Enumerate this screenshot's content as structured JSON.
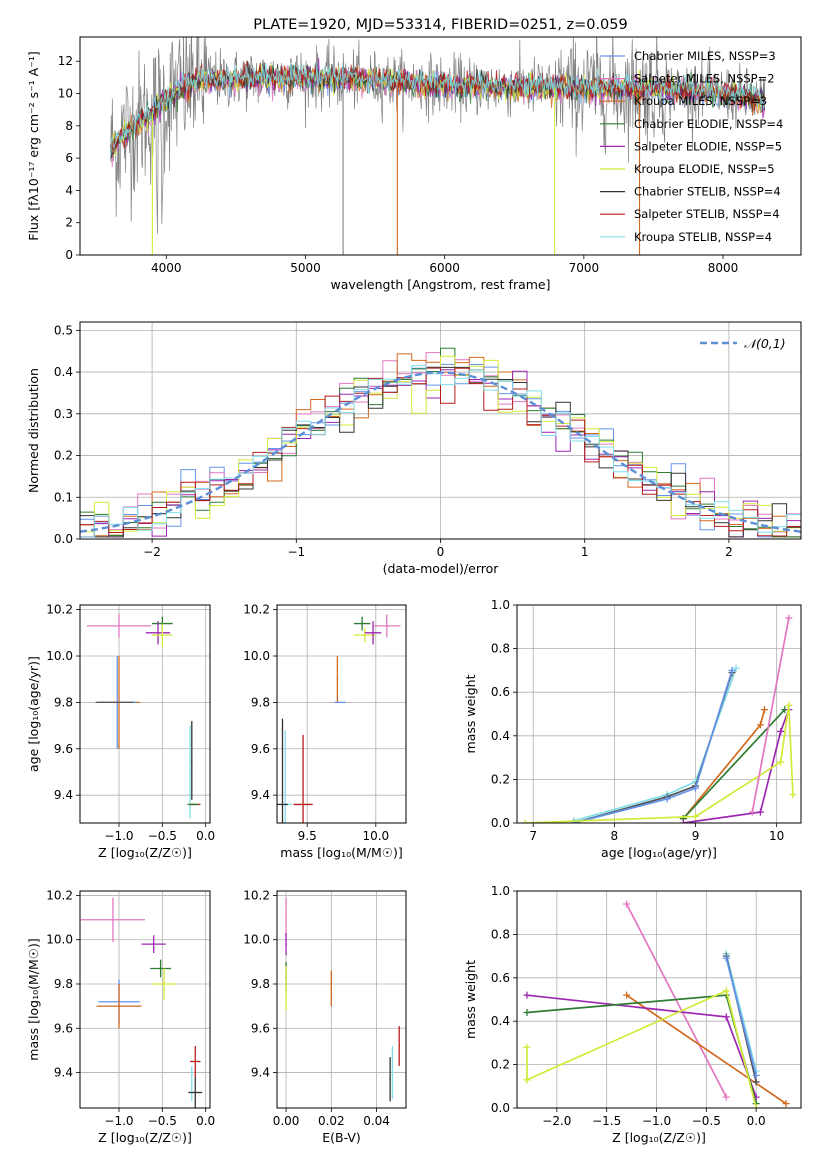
{
  "chart_data": [
    {
      "id": "spectrum",
      "type": "line",
      "title": "PLATE=1920, MJD=53314, FIBERID=0251, z=0.059",
      "xlabel": "wavelength [Angstrom, rest frame]",
      "ylabel": "Flux [fλ10⁻¹⁷ erg cm⁻² s⁻¹ A⁻¹]",
      "xlim": [
        3380,
        8560
      ],
      "ylim": [
        0,
        13.5
      ],
      "xticks": [
        4000,
        5000,
        6000,
        7000,
        8000
      ],
      "yticks": [
        0,
        2,
        4,
        6,
        8,
        10,
        12
      ],
      "grid": false,
      "legend_position": "right",
      "data_range": [
        3600,
        8300
      ],
      "series": [
        {
          "name": "Chabrier MILES, NSSP=3",
          "color": "#6495ed"
        },
        {
          "name": "Salpeter MILES, NSSP=2",
          "color": "#e377c2"
        },
        {
          "name": "Kroupa MILES, NSSP=3",
          "color": "#d2691e"
        },
        {
          "name": "Chabrier ELODIE, NSSP=4",
          "color": "#2e7d32"
        },
        {
          "name": "Salpeter ELODIE, NSSP=5",
          "color": "#9c27b0"
        },
        {
          "name": "Kroupa ELODIE, NSSP=5",
          "color": "#d4ea3a"
        },
        {
          "name": "Chabrier STELIB, NSSP=4",
          "color": "#333333"
        },
        {
          "name": "Salpeter STELIB, NSSP=4",
          "color": "#b71c1c"
        },
        {
          "name": "Kroupa STELIB, NSSP=4",
          "color": "#80deea"
        }
      ],
      "data_series": {
        "name": "data",
        "color": "#808080"
      },
      "continuum_points": [
        [
          3600,
          6.5
        ],
        [
          3700,
          7.5
        ],
        [
          3800,
          8.2
        ],
        [
          3900,
          8.8
        ],
        [
          4000,
          9.6
        ],
        [
          4200,
          10.8
        ],
        [
          4500,
          10.9
        ],
        [
          5000,
          11.0
        ],
        [
          5500,
          10.8
        ],
        [
          6000,
          10.5
        ],
        [
          6500,
          10.4
        ],
        [
          7000,
          10.3
        ],
        [
          7500,
          10.3
        ],
        [
          8000,
          10.0
        ],
        [
          8300,
          9.5
        ]
      ]
    },
    {
      "id": "residuals",
      "type": "line",
      "xlabel": "(data-model)/error",
      "ylabel": "Normed distribution",
      "xlim": [
        -2.5,
        2.5
      ],
      "ylim": [
        0,
        0.52
      ],
      "xticks": [
        -2,
        -1,
        0,
        1,
        2
      ],
      "yticks": [
        0.0,
        0.1,
        0.2,
        0.3,
        0.4,
        0.5
      ],
      "grid": true,
      "legend_position": "top-right",
      "gaussian": {
        "name": "𝒩(0,1)",
        "color": "#5b8fd6"
      },
      "bin_width": 0.1
    },
    {
      "id": "age-vs-Z",
      "type": "scatter",
      "xlabel": "Z [log₁₀(Z/Z☉)]",
      "ylabel": "age  [log₁₀(age/yr)]",
      "xlim": [
        -1.45,
        0.05
      ],
      "ylim": [
        9.28,
        10.22
      ],
      "xticks": [
        -1.0,
        -0.5,
        0.0
      ],
      "yticks": [
        9.4,
        9.6,
        9.8,
        10.0,
        10.2
      ],
      "grid": true,
      "points": [
        {
          "x": -1.0,
          "y": 9.8,
          "xerr": 0.24,
          "yerr": 0.2,
          "color": "#d2691e"
        },
        {
          "x": -1.02,
          "y": 9.8,
          "xerr": 0.22,
          "yerr": 0.2,
          "color": "#6495ed"
        },
        {
          "x": -1.05,
          "y": 9.8,
          "xerr": 0.22,
          "yerr": 0.0,
          "color": "#555555"
        },
        {
          "x": -1.0,
          "y": 10.13,
          "xerr": 0.37,
          "yerr": 0.05,
          "color": "#e377c2"
        },
        {
          "x": -0.5,
          "y": 10.14,
          "xerr": 0.12,
          "yerr": 0.03,
          "color": "#2e7d32"
        },
        {
          "x": -0.55,
          "y": 10.1,
          "xerr": 0.14,
          "yerr": 0.05,
          "color": "#9c27b0"
        },
        {
          "x": -0.5,
          "y": 10.09,
          "xerr": 0.12,
          "yerr": 0.05,
          "color": "#d4ea3a"
        },
        {
          "x": -0.18,
          "y": 9.5,
          "xerr": 0.0,
          "yerr": 0.2,
          "color": "#80deea"
        },
        {
          "x": -0.16,
          "y": 9.55,
          "xerr": 0.0,
          "yerr": 0.17,
          "color": "#333333"
        },
        {
          "x": -0.12,
          "y": 9.36,
          "xerr": 0.06,
          "yerr": 0.0,
          "color": "#b71c1c"
        },
        {
          "x": -0.15,
          "y": 9.36,
          "xerr": 0.06,
          "yerr": 0.0,
          "color": "#2e7d32"
        }
      ]
    },
    {
      "id": "age-vs-mass",
      "type": "scatter",
      "xlabel": "mass [log₁₀(M/M☉)]",
      "ylabel": "",
      "xlim": [
        9.28,
        10.22
      ],
      "ylim": [
        9.28,
        10.22
      ],
      "xticks": [
        9.5,
        10.0
      ],
      "yticks": [
        9.4,
        9.6,
        9.8,
        10.0,
        10.2
      ],
      "grid": true,
      "points": [
        {
          "x": 9.72,
          "y": 9.9,
          "xerr": 0.0,
          "yerr": 0.1,
          "color": "#d2691e"
        },
        {
          "x": 9.74,
          "y": 9.8,
          "xerr": 0.04,
          "yerr": 0.0,
          "color": "#6495ed"
        },
        {
          "x": 9.92,
          "y": 10.09,
          "xerr": 0.08,
          "yerr": 0.03,
          "color": "#d4ea3a"
        },
        {
          "x": 9.9,
          "y": 10.14,
          "xerr": 0.06,
          "yerr": 0.03,
          "color": "#2e7d32"
        },
        {
          "x": 9.98,
          "y": 10.1,
          "xerr": 0.06,
          "yerr": 0.05,
          "color": "#9c27b0"
        },
        {
          "x": 10.08,
          "y": 10.13,
          "xerr": 0.1,
          "yerr": 0.05,
          "color": "#e377c2"
        },
        {
          "x": 9.34,
          "y": 9.36,
          "xerr": 0.05,
          "yerr": 0.32,
          "color": "#80deea"
        },
        {
          "x": 9.32,
          "y": 9.36,
          "xerr": 0.04,
          "yerr": 0.37,
          "color": "#333333"
        },
        {
          "x": 9.47,
          "y": 9.36,
          "xerr": 0.07,
          "yerr": 0.3,
          "color": "#b71c1c"
        }
      ]
    },
    {
      "id": "mass-weight-vs-age",
      "type": "line",
      "xlabel": "age  [log₁₀(age/yr)]",
      "ylabel": "mass weight",
      "xlim": [
        6.8,
        10.3
      ],
      "ylim": [
        0,
        1.0
      ],
      "xticks": [
        7,
        8,
        9,
        10
      ],
      "yticks": [
        0.0,
        0.2,
        0.4,
        0.6,
        0.8,
        1.0
      ],
      "grid": true,
      "series": [
        {
          "color": "#80deea",
          "points": [
            [
              7.5,
              0.01
            ],
            [
              8.65,
              0.13
            ],
            [
              9.0,
              0.19
            ],
            [
              9.5,
              0.71
            ]
          ]
        },
        {
          "color": "#555555",
          "points": [
            [
              7.5,
              0.0
            ],
            [
              8.65,
              0.12
            ],
            [
              9.0,
              0.17
            ],
            [
              9.45,
              0.69
            ]
          ]
        },
        {
          "color": "#6495ed",
          "points": [
            [
              7.5,
              0.0
            ],
            [
              8.65,
              0.11
            ],
            [
              9.0,
              0.16
            ],
            [
              9.45,
              0.7
            ]
          ]
        },
        {
          "color": "#d2691e",
          "points": [
            [
              8.85,
              0.02
            ],
            [
              9.8,
              0.45
            ],
            [
              9.85,
              0.52
            ]
          ]
        },
        {
          "color": "#2e7d32",
          "points": [
            [
              8.85,
              0.02
            ],
            [
              10.1,
              0.52
            ]
          ]
        },
        {
          "color": "#9c27b0",
          "points": [
            [
              8.85,
              0.0
            ],
            [
              9.8,
              0.05
            ],
            [
              10.05,
              0.42
            ],
            [
              10.15,
              0.52
            ]
          ]
        },
        {
          "color": "#d4ea3a",
          "points": [
            [
              6.9,
              0.0
            ],
            [
              9.0,
              0.03
            ],
            [
              10.05,
              0.28
            ],
            [
              10.15,
              0.54
            ],
            [
              10.2,
              0.13
            ]
          ]
        },
        {
          "color": "#e377c2",
          "points": [
            [
              9.7,
              0.05
            ],
            [
              10.15,
              0.94
            ]
          ]
        }
      ]
    },
    {
      "id": "mass-vs-Z",
      "type": "scatter",
      "xlabel": "Z [log₁₀(Z/Z☉)]",
      "ylabel": "mass [log₁₀(M/M☉)]",
      "xlim": [
        -1.45,
        0.05
      ],
      "ylim": [
        9.24,
        10.22
      ],
      "xticks": [
        -1.0,
        -0.5,
        0.0
      ],
      "yticks": [
        9.4,
        9.6,
        9.8,
        10.0,
        10.2
      ],
      "grid": true,
      "points": [
        {
          "x": -1.07,
          "y": 10.09,
          "xerr": 0.37,
          "yerr": 0.1,
          "color": "#e377c2"
        },
        {
          "x": -1.0,
          "y": 9.72,
          "xerr": 0.24,
          "yerr": 0.1,
          "color": "#6495ed"
        },
        {
          "x": -1.0,
          "y": 9.7,
          "xerr": 0.26,
          "yerr": 0.1,
          "color": "#d2691e"
        },
        {
          "x": -0.6,
          "y": 9.98,
          "xerr": 0.14,
          "yerr": 0.04,
          "color": "#9c27b0"
        },
        {
          "x": -0.52,
          "y": 9.87,
          "xerr": 0.12,
          "yerr": 0.04,
          "color": "#2e7d32"
        },
        {
          "x": -0.48,
          "y": 9.8,
          "xerr": 0.14,
          "yerr": 0.07,
          "color": "#d4ea3a"
        },
        {
          "x": -0.12,
          "y": 9.45,
          "xerr": 0.06,
          "yerr": 0.07,
          "color": "#b71c1c"
        },
        {
          "x": -0.16,
          "y": 9.35,
          "xerr": 0.0,
          "yerr": 0.08,
          "color": "#80deea"
        },
        {
          "x": -0.12,
          "y": 9.31,
          "xerr": 0.08,
          "yerr": 0.07,
          "color": "#333333"
        }
      ]
    },
    {
      "id": "mass-vs-ebv",
      "type": "scatter",
      "xlabel": "E(B-V)",
      "ylabel": "",
      "xlim": [
        -0.004,
        0.053
      ],
      "ylim": [
        9.24,
        10.22
      ],
      "xticks": [
        0.0,
        0.02,
        0.04
      ],
      "yticks": [
        9.4,
        9.6,
        9.8,
        10.0,
        10.2
      ],
      "grid": true,
      "points": [
        {
          "x": 0.0,
          "y": 10.09,
          "xerr": 0.0,
          "yerr": 0.1,
          "color": "#e377c2"
        },
        {
          "x": 0.0,
          "y": 9.98,
          "xerr": 0.0,
          "yerr": 0.05,
          "color": "#9c27b0"
        },
        {
          "x": 0.0,
          "y": 9.83,
          "xerr": 0.0,
          "yerr": 0.07,
          "color": "#2e7d32"
        },
        {
          "x": 0.0,
          "y": 9.78,
          "xerr": 0.0,
          "yerr": 0.1,
          "color": "#d4ea3a"
        },
        {
          "x": 0.02,
          "y": 9.78,
          "xerr": 0.0,
          "yerr": 0.08,
          "color": "#d2691e"
        },
        {
          "x": 0.047,
          "y": 9.4,
          "xerr": 0.0,
          "yerr": 0.12,
          "color": "#80deea"
        },
        {
          "x": 0.046,
          "y": 9.37,
          "xerr": 0.0,
          "yerr": 0.1,
          "color": "#333333"
        },
        {
          "x": 0.05,
          "y": 9.52,
          "xerr": 0.0,
          "yerr": 0.09,
          "color": "#b71c1c"
        }
      ]
    },
    {
      "id": "mass-weight-vs-Z",
      "type": "line",
      "xlabel": "Z [log₁₀(Z/Z☉)]",
      "ylabel": "mass weight",
      "xlim": [
        -2.4,
        0.45
      ],
      "ylim": [
        0,
        1.0
      ],
      "xticks": [
        -2.0,
        -1.5,
        -1.0,
        -0.5,
        0.0
      ],
      "yticks": [
        0.0,
        0.2,
        0.4,
        0.6,
        0.8,
        1.0
      ],
      "grid": true,
      "series": [
        {
          "color": "#e377c2",
          "points": [
            [
              -1.3,
              0.94
            ],
            [
              -0.3,
              0.05
            ]
          ]
        },
        {
          "color": "#d2691e",
          "points": [
            [
              -1.3,
              0.52
            ],
            [
              0.3,
              0.02
            ]
          ]
        },
        {
          "color": "#9c27b0",
          "points": [
            [
              -2.3,
              0.52
            ],
            [
              -0.3,
              0.42
            ],
            [
              0.0,
              0.05
            ]
          ]
        },
        {
          "color": "#2e7d32",
          "points": [
            [
              -2.3,
              0.44
            ],
            [
              -0.3,
              0.52
            ],
            [
              0.0,
              0.02
            ]
          ]
        },
        {
          "color": "#d4ea3a",
          "points": [
            [
              -2.3,
              0.13
            ],
            [
              -0.3,
              0.54
            ],
            [
              0.0,
              0.0
            ]
          ]
        },
        {
          "color": "#d4ea3a",
          "points": [
            [
              -2.3,
              0.28
            ],
            [
              -2.3,
              0.13
            ]
          ]
        },
        {
          "color": "#80deea",
          "points": [
            [
              -0.3,
              0.71
            ],
            [
              0.0,
              0.17
            ]
          ]
        },
        {
          "color": "#555555",
          "points": [
            [
              -0.3,
              0.7
            ],
            [
              0.0,
              0.12
            ]
          ]
        },
        {
          "color": "#6495ed",
          "points": [
            [
              -0.3,
              0.69
            ],
            [
              0.0,
              0.15
            ]
          ]
        }
      ]
    }
  ]
}
